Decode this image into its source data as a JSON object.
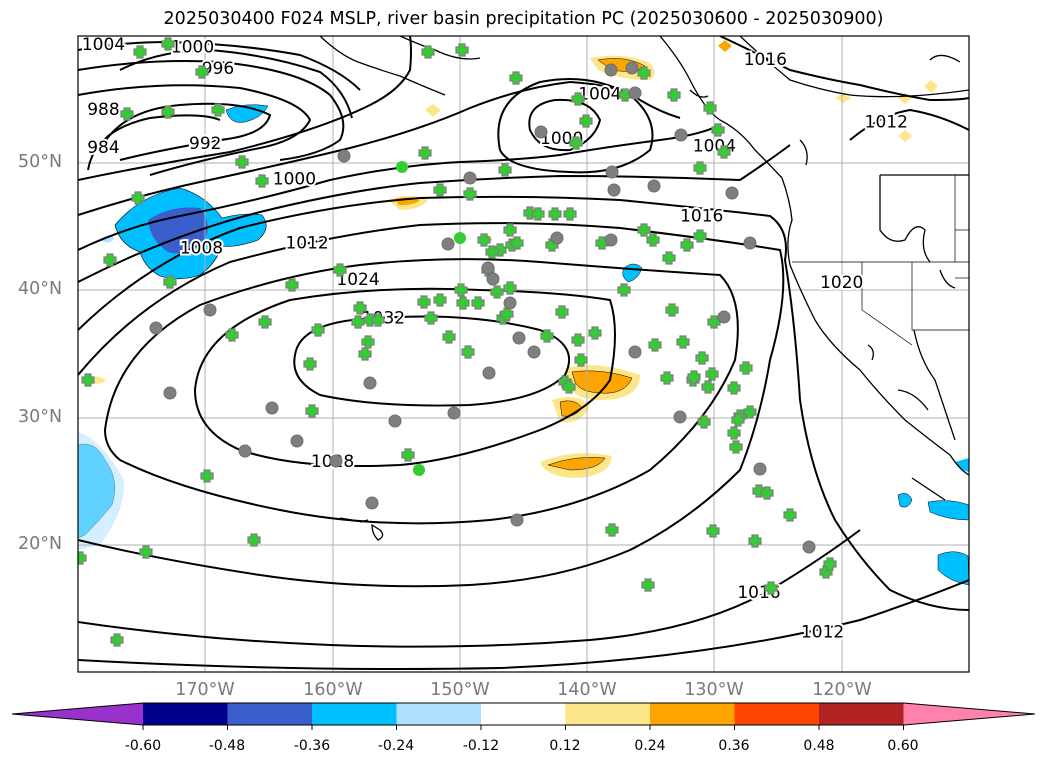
{
  "title": "2025030400 F024 MSLP, river basin precipitation PC (2025030600 - 2025030900)",
  "map": {
    "projection": "cylindrical",
    "lon_range": [
      -180,
      -110
    ],
    "lat_range": [
      10,
      60
    ],
    "grid": true,
    "lat_ticks": [
      {
        "value": 50,
        "label": "50°N"
      },
      {
        "value": 40,
        "label": "40°N"
      },
      {
        "value": 30,
        "label": "30°N"
      },
      {
        "value": 20,
        "label": "20°N"
      }
    ],
    "lon_ticks": [
      {
        "value": -170,
        "label": "170°W"
      },
      {
        "value": -160,
        "label": "160°W"
      },
      {
        "value": -150,
        "label": "150°W"
      },
      {
        "value": -140,
        "label": "140°W"
      },
      {
        "value": -130,
        "label": "130°W"
      },
      {
        "value": -120,
        "label": "120°W"
      }
    ],
    "isobar_labels": [
      {
        "text": "1004",
        "lon": -178,
        "lat": 59.3
      },
      {
        "text": "1000",
        "lon": -171,
        "lat": 59.1
      },
      {
        "text": "996",
        "lon": -169,
        "lat": 57.4
      },
      {
        "text": "988",
        "lon": -178,
        "lat": 54.2
      },
      {
        "text": "984",
        "lon": -178,
        "lat": 51.2
      },
      {
        "text": "992",
        "lon": -170,
        "lat": 51.5
      },
      {
        "text": "1000",
        "lon": -163,
        "lat": 48.7
      },
      {
        "text": "1008",
        "lon": -170.3,
        "lat": 43.3
      },
      {
        "text": "1012",
        "lon": -162,
        "lat": 43.7
      },
      {
        "text": "1024",
        "lon": -158,
        "lat": 40.8
      },
      {
        "text": "1032",
        "lon": -156,
        "lat": 37.8
      },
      {
        "text": "1028",
        "lon": -160,
        "lat": 26.5
      },
      {
        "text": "1004",
        "lon": -139,
        "lat": 55.4
      },
      {
        "text": "1000",
        "lon": -142,
        "lat": 51.9
      },
      {
        "text": "1004",
        "lon": -130,
        "lat": 51.3
      },
      {
        "text": "1016",
        "lon": -126,
        "lat": 58.1
      },
      {
        "text": "1012",
        "lon": -116.5,
        "lat": 53.2
      },
      {
        "text": "1016",
        "lon": -131,
        "lat": 45.8
      },
      {
        "text": "1020",
        "lon": -120,
        "lat": 40.6
      },
      {
        "text": "1016",
        "lon": -126.5,
        "lat": 16.2
      },
      {
        "text": "1012",
        "lon": -121.5,
        "lat": 13.1
      }
    ]
  },
  "colorbar": {
    "levels": [
      "-0.60",
      "-0.48",
      "-0.36",
      "-0.24",
      "-0.12",
      "0.12",
      "0.24",
      "0.36",
      "0.48",
      "0.60"
    ],
    "colors": [
      "#9932cc",
      "#00008b",
      "#3a5fcd",
      "#00bfff",
      "#b0e2ff",
      "#ffffff",
      "#fde68a",
      "#ffa500",
      "#ff4500",
      "#b22222",
      "#ff82ab"
    ]
  },
  "colors": {
    "station_plus": "#33cc33",
    "station_outline": "#7f7f7f",
    "grid": "#b0b0b0",
    "isobar": "#000000"
  }
}
